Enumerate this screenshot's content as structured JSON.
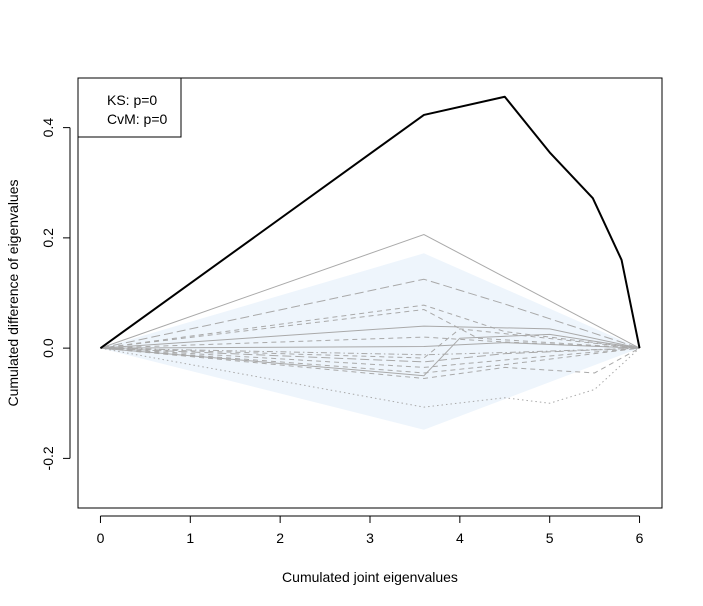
{
  "chart_data": {
    "type": "line",
    "title": "",
    "xlabel": "Cumulated joint eigenvalues",
    "ylabel": "Cumulated difference of eigenvalues",
    "xlim": [
      -0.25,
      6.25
    ],
    "ylim": [
      -0.29,
      0.49
    ],
    "x_ticks": [
      0,
      1,
      2,
      3,
      4,
      5,
      6
    ],
    "x_tick_labels": [
      "0",
      "1",
      "2",
      "3",
      "4",
      "5",
      "6"
    ],
    "y_ticks": [
      -0.2,
      0.0,
      0.2,
      0.4
    ],
    "y_tick_labels": [
      "-0.2",
      "0.0",
      "0.2",
      "0.4"
    ],
    "grid": false,
    "legend": {
      "position": "top-left",
      "entries": [
        "KS: p=0",
        "CvM: p=0"
      ]
    },
    "colors": {
      "observed": "#000000",
      "simulated": "#a9a9a9",
      "band": "#eef5fc"
    },
    "band": {
      "x": [
        0,
        3.6,
        6
      ],
      "upper": [
        0,
        0.172,
        0
      ],
      "lower": [
        0,
        -0.148,
        0
      ]
    },
    "series": [
      {
        "role": "observed",
        "x": [
          0,
          3.6,
          4.5,
          5.0,
          5.48,
          5.8,
          6
        ],
        "y": [
          0,
          0.423,
          0.456,
          0.355,
          0.272,
          0.16,
          0
        ]
      },
      {
        "role": "simulated",
        "style": "solid",
        "x": [
          0,
          3.6,
          6
        ],
        "y": [
          0,
          0.206,
          0
        ]
      },
      {
        "role": "simulated",
        "style": "longdash",
        "x": [
          0,
          3.6,
          4.5,
          6
        ],
        "y": [
          0,
          0.125,
          0.08,
          0
        ]
      },
      {
        "role": "simulated",
        "style": "dashed",
        "x": [
          0,
          3.6,
          4.5,
          6
        ],
        "y": [
          0,
          0.078,
          0.03,
          0
        ]
      },
      {
        "role": "simulated",
        "style": "dashed",
        "x": [
          0,
          3.6,
          4.2,
          6
        ],
        "y": [
          0,
          0.07,
          0.018,
          0
        ]
      },
      {
        "role": "simulated",
        "style": "solid",
        "x": [
          0,
          3.6,
          5.0,
          6
        ],
        "y": [
          0,
          0.04,
          0.035,
          0
        ]
      },
      {
        "role": "simulated",
        "style": "dashed",
        "x": [
          0,
          3.6,
          4.4,
          6
        ],
        "y": [
          0,
          0.02,
          0.012,
          0
        ]
      },
      {
        "role": "simulated",
        "style": "solid",
        "x": [
          0,
          3.6,
          4.5,
          6
        ],
        "y": [
          0,
          0.003,
          0.01,
          0
        ]
      },
      {
        "role": "simulated",
        "style": "dotdash",
        "x": [
          0,
          3.6,
          4.5,
          6
        ],
        "y": [
          0,
          -0.012,
          -0.008,
          0
        ]
      },
      {
        "role": "simulated",
        "style": "dashed",
        "x": [
          0,
          3.6,
          4.0,
          6
        ],
        "y": [
          0,
          -0.018,
          0.035,
          0
        ]
      },
      {
        "role": "simulated",
        "style": "longdash",
        "x": [
          0,
          3.6,
          4.5,
          6
        ],
        "y": [
          0,
          -0.025,
          -0.01,
          0
        ]
      },
      {
        "role": "simulated",
        "style": "dashed",
        "x": [
          0,
          3.6,
          4.6,
          6
        ],
        "y": [
          0,
          -0.035,
          -0.02,
          0
        ]
      },
      {
        "role": "simulated",
        "style": "solid",
        "x": [
          0,
          3.6,
          4.0,
          5.0,
          6
        ],
        "y": [
          0,
          -0.05,
          0.018,
          0.025,
          0
        ]
      },
      {
        "role": "simulated",
        "style": "dashed",
        "x": [
          0,
          3.6,
          4.5,
          6
        ],
        "y": [
          0,
          -0.045,
          -0.03,
          0
        ]
      },
      {
        "role": "simulated",
        "style": "dashed",
        "x": [
          0,
          3.6,
          4.5,
          5.5,
          6
        ],
        "y": [
          0,
          -0.055,
          -0.035,
          -0.045,
          0
        ]
      },
      {
        "role": "simulated",
        "style": "dotted",
        "x": [
          0,
          3.6,
          4.5,
          5.0,
          5.5,
          6
        ],
        "y": [
          0,
          -0.107,
          -0.09,
          -0.1,
          -0.075,
          0
        ]
      }
    ]
  }
}
